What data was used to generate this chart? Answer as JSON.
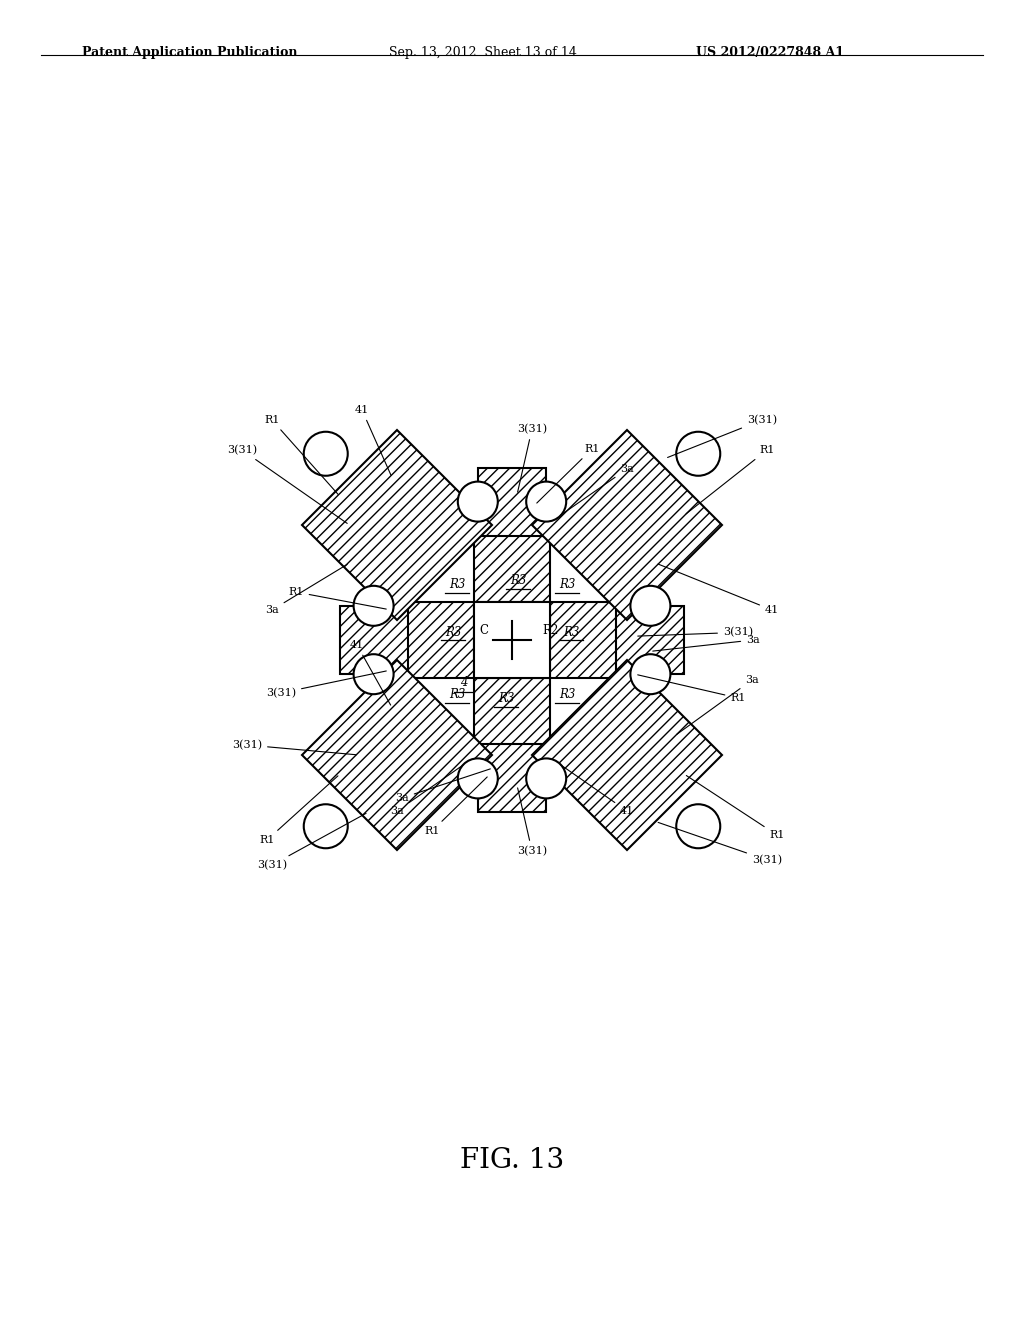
{
  "background_color": "#ffffff",
  "header_left": "Patent Application Publication",
  "header_center": "Sep. 13, 2012  Sheet 13 of 14",
  "header_right": "US 2012/0227848 A1",
  "fig_label": "FIG. 13",
  "line_color": "#000000"
}
